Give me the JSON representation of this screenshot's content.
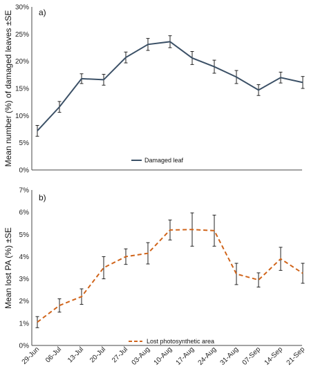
{
  "chart_data": [
    {
      "type": "line",
      "panel_label": "a)",
      "ylabel": "Mean number (%) of damaged leaves ±SE",
      "yticks": [
        "0%",
        "5%",
        "10%",
        "15%",
        "20%",
        "25%",
        "30%"
      ],
      "ylim": [
        0,
        30
      ],
      "grid": false,
      "legend": "bottom-center",
      "series": [
        {
          "name": "Damaged leaf",
          "color": "#3b5066",
          "style": "solid",
          "values": [
            7.2,
            11.6,
            16.8,
            16.6,
            20.7,
            23.1,
            23.6,
            20.6,
            19.0,
            17.1,
            14.7,
            17.0,
            16.1
          ],
          "se": [
            1.0,
            1.0,
            0.9,
            1.0,
            1.0,
            1.1,
            1.1,
            1.2,
            1.2,
            1.2,
            1.0,
            1.0,
            1.1
          ]
        }
      ]
    },
    {
      "type": "line",
      "panel_label": "b)",
      "ylabel": "Mean lost PA (%) ±SE",
      "yticks": [
        "0%",
        "1%",
        "2%",
        "3%",
        "4%",
        "5%",
        "6%",
        "7%"
      ],
      "ylim": [
        0,
        7
      ],
      "grid": false,
      "legend": "bottom-center",
      "categories": [
        "29-Jun",
        "06-Jul",
        "13-Jul",
        "20-Jul",
        "27-Jul",
        "03-Aug",
        "10-Aug",
        "17-Aug",
        "24-Aug",
        "31-Aug",
        "07-Sep",
        "14-Sep",
        "21-Sep"
      ],
      "series": [
        {
          "name": "Lost photosynthetic area",
          "color": "#d0641a",
          "style": "dashed",
          "values": [
            1.05,
            1.8,
            2.2,
            3.5,
            4.0,
            4.15,
            5.2,
            5.22,
            5.17,
            3.22,
            2.95,
            3.9,
            3.25
          ],
          "se": [
            0.25,
            0.3,
            0.35,
            0.5,
            0.35,
            0.48,
            0.45,
            0.75,
            0.7,
            0.48,
            0.32,
            0.52,
            0.45
          ]
        }
      ]
    }
  ]
}
